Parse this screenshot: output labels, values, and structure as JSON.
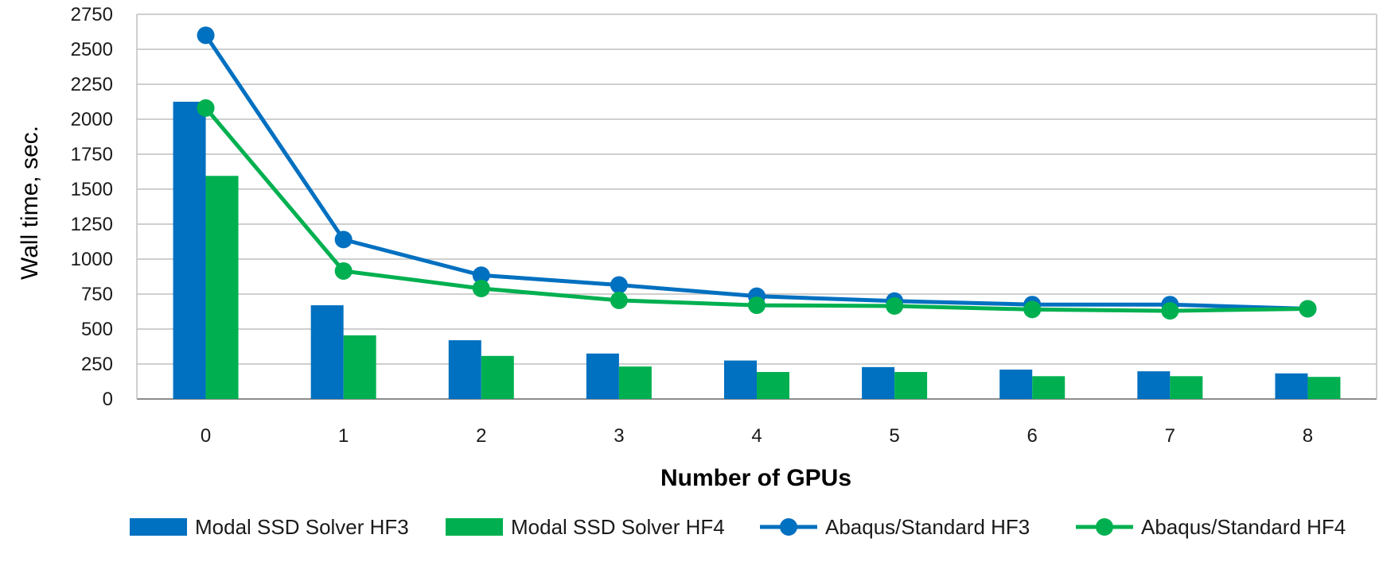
{
  "chart_data": {
    "type": "bar",
    "title": "",
    "xlabel": "Number of GPUs",
    "ylabel": "Wall time, sec.",
    "categories": [
      "0",
      "1",
      "2",
      "3",
      "4",
      "5",
      "6",
      "7",
      "8"
    ],
    "ylim": [
      0,
      2750
    ],
    "yticks": [
      0,
      250,
      500,
      750,
      1000,
      1250,
      1500,
      1750,
      2000,
      2250,
      2500,
      2750
    ],
    "grid": true,
    "legend_position": "bottom",
    "series": [
      {
        "name": "Modal SSD Solver HF3",
        "type": "bar",
        "color": "#0070C0",
        "values": [
          2125,
          670,
          420,
          325,
          275,
          228,
          210,
          198,
          183
        ]
      },
      {
        "name": "Modal SSD Solver HF4",
        "type": "bar",
        "color": "#00B050",
        "values": [
          1595,
          455,
          308,
          232,
          193,
          193,
          163,
          163,
          158
        ]
      },
      {
        "name": "Abaqus/Standard HF3",
        "type": "line",
        "color": "#0070C0",
        "values": [
          2600,
          1140,
          885,
          815,
          735,
          700,
          675,
          675,
          645
        ]
      },
      {
        "name": "Abaqus/Standard HF4",
        "type": "line",
        "color": "#00B050",
        "values": [
          2080,
          915,
          790,
          705,
          670,
          665,
          640,
          630,
          645
        ]
      }
    ]
  }
}
